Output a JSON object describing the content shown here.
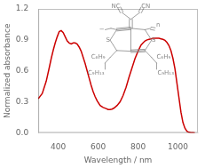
{
  "chart_data": {
    "type": "line",
    "xlabel": "Wavelength / nm",
    "ylabel": "Normalized absorbance",
    "x": [
      300,
      320,
      340,
      355,
      365,
      375,
      385,
      395,
      405,
      415,
      425,
      435,
      445,
      455,
      465,
      475,
      485,
      495,
      505,
      515,
      525,
      535,
      545,
      555,
      565,
      575,
      585,
      595,
      610,
      625,
      640,
      650,
      660,
      670,
      680,
      695,
      710,
      725,
      740,
      755,
      770,
      785,
      800,
      815,
      825,
      835,
      845,
      855,
      865,
      875,
      885,
      895,
      905,
      915,
      925,
      935,
      945,
      955,
      965,
      975,
      985,
      995,
      1005,
      1015,
      1025,
      1035,
      1045,
      1055,
      1065,
      1075,
      1085
    ],
    "values": [
      0.33,
      0.38,
      0.5,
      0.63,
      0.72,
      0.8,
      0.87,
      0.93,
      0.98,
      0.99,
      0.97,
      0.93,
      0.89,
      0.87,
      0.86,
      0.87,
      0.87,
      0.86,
      0.83,
      0.79,
      0.73,
      0.67,
      0.6,
      0.53,
      0.46,
      0.4,
      0.35,
      0.31,
      0.265,
      0.245,
      0.235,
      0.225,
      0.225,
      0.23,
      0.24,
      0.265,
      0.3,
      0.36,
      0.44,
      0.54,
      0.63,
      0.72,
      0.79,
      0.85,
      0.87,
      0.89,
      0.9,
      0.905,
      0.91,
      0.915,
      0.915,
      0.915,
      0.915,
      0.91,
      0.905,
      0.895,
      0.875,
      0.845,
      0.795,
      0.72,
      0.62,
      0.48,
      0.34,
      0.2,
      0.1,
      0.045,
      0.015,
      0.005,
      0.002,
      0.001,
      0.0
    ],
    "color": "#cc0000",
    "xlim": [
      300,
      1100
    ],
    "ylim": [
      0.0,
      1.2
    ],
    "xticks": [
      400,
      600,
      800,
      1000
    ],
    "yticks": [
      {
        "value": 0.0,
        "label": "0.0"
      },
      0.3,
      0.6,
      0.9,
      1.2
    ],
    "grid": false,
    "annotations": [
      "NC",
      "CN",
      "S",
      "S",
      "C₆H₉",
      "C₉H₁₃",
      "C₆H₉",
      "C₉H₁₃",
      "−",
      "n"
    ]
  }
}
